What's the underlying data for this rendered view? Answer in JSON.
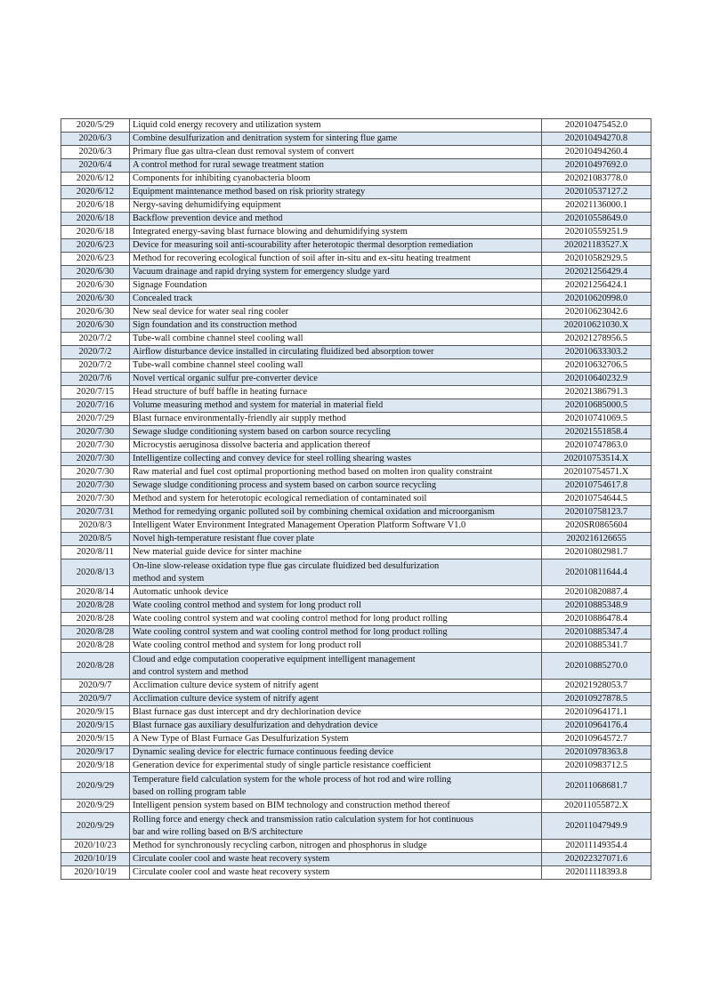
{
  "colors": {
    "row_alt": "#dce6f0",
    "border": "#555555"
  },
  "rows": [
    {
      "date": "2020/5/29",
      "title": "Liquid cold energy recovery and utilization system",
      "number": "202010475452.0"
    },
    {
      "date": "2020/6/3",
      "title": "Combine desulfurization and denitration system for sintering flue game",
      "number": "202010494270.8"
    },
    {
      "date": "2020/6/3",
      "title": "Primary flue gas ultra-clean dust removal system of convert",
      "number": "202010494260.4"
    },
    {
      "date": "2020/6/4",
      "title": "A control method for rural sewage treatment station",
      "number": "202010497692.0"
    },
    {
      "date": "2020/6/12",
      "title": "Components for inhibiting cyanobacteria bloom",
      "number": "202021083778.0"
    },
    {
      "date": "2020/6/12",
      "title": "Equipment maintenance method based on risk priority strategy",
      "number": "202010537127.2"
    },
    {
      "date": "2020/6/18",
      "title": "Nergy-saving dehumidifying equipment",
      "number": "202021136000.1"
    },
    {
      "date": "2020/6/18",
      "title": "Backflow prevention device and method",
      "number": "202010558649.0"
    },
    {
      "date": "2020/6/18",
      "title": "Integrated energy-saving blast furnace blowing and dehumidifying system",
      "number": "202010559251.9"
    },
    {
      "date": "2020/6/23",
      "title": "Device for measuring soil anti-scourability after heterotopic thermal desorption remediation",
      "number": "202021183527.X"
    },
    {
      "date": "2020/6/23",
      "title": "Method for recovering ecological function of soil after in-situ and ex-situ heating treatment",
      "number": "202010582929.5"
    },
    {
      "date": "2020/6/30",
      "title": "Vacuum drainage and rapid drying system for emergency sludge yard",
      "number": "202021256429.4"
    },
    {
      "date": "2020/6/30",
      "title": "Signage Foundation",
      "number": "202021256424.1"
    },
    {
      "date": "2020/6/30",
      "title": "Concealed track",
      "number": "202010620998.0"
    },
    {
      "date": "2020/6/30",
      "title": "New seal device for water seal ring cooler",
      "number": "202010623042.6"
    },
    {
      "date": "2020/6/30",
      "title": "Sign foundation and its construction method",
      "number": "202010621030.X"
    },
    {
      "date": "2020/7/2",
      "title": "Tube-wall combine channel steel cooling wall",
      "number": "202021278956.5"
    },
    {
      "date": "2020/7/2",
      "title": "Airflow disturbance device installed in circulating fluidized bed absorption tower",
      "number": "202010633303.2"
    },
    {
      "date": "2020/7/2",
      "title": "Tube-wall combine channel steel cooling wall",
      "number": "202010632706.5"
    },
    {
      "date": "2020/7/6",
      "title": "Novel vertical organic sulfur pre-converter device",
      "number": "202010640232.9"
    },
    {
      "date": "2020/7/15",
      "title": "Head structure of buff baffle in heating furnace",
      "number": "202021386791.3"
    },
    {
      "date": "2020/7/16",
      "title": "Volume measuring method and system for material in material field",
      "number": "202010685000.5"
    },
    {
      "date": "2020/7/29",
      "title": "Blast furnace environmentally-friendly air supply method",
      "number": "202010741069.5"
    },
    {
      "date": "2020/7/30",
      "title": "Sewage sludge conditioning system based on carbon source recycling",
      "number": "202021551858.4"
    },
    {
      "date": "2020/7/30",
      "title": "Microcystis aeruginosa dissolve bacteria and application thereof",
      "number": "202010747863.0"
    },
    {
      "date": "2020/7/30",
      "title": "Intelligentize collecting and convey device for steel rolling shearing wastes",
      "number": "202010753514.X"
    },
    {
      "date": "2020/7/30",
      "title": "Raw material and fuel cost optimal proportioning method based on molten iron quality constraint",
      "number": "202010754571.X"
    },
    {
      "date": "2020/7/30",
      "title": "Sewage sludge conditioning process and system based on carbon source recycling",
      "number": "202010754617.8"
    },
    {
      "date": "2020/7/30",
      "title": "Method and system for heterotopic ecological remediation of contaminated soil",
      "number": "202010754644.5"
    },
    {
      "date": "2020/7/31",
      "title": "Method for remedying organic polluted soil by combining chemical oxidation and microorganism",
      "number": "202010758123.7"
    },
    {
      "date": "2020/8/3",
      "title": "Intelligent Water Environment Integrated Management Operation Platform Software V1.0",
      "number": "2020SR0865604"
    },
    {
      "date": "2020/8/5",
      "title": "Novel high-temperature resistant flue cover plate",
      "number": "2020216126655"
    },
    {
      "date": "2020/8/11",
      "title": "New material guide device for sinter machine",
      "number": "202010802981.7"
    },
    {
      "date": "2020/8/13",
      "title": "On-line slow-release oxidation type flue gas circulate fluidized bed desulfurization\nmethod and system",
      "number": "202010811644.4"
    },
    {
      "date": "2020/8/14",
      "title": "Automatic unhook device",
      "number": "202010820887.4"
    },
    {
      "date": "2020/8/28",
      "title": "Wate cooling control method and system for long product roll",
      "number": "202010885348.9"
    },
    {
      "date": "2020/8/28",
      "title": "Wate cooling control system and wat cooling control method for long product rolling",
      "number": "202010886478.4"
    },
    {
      "date": "2020/8/28",
      "title": "Wate cooling control system and wat cooling control method for long product rolling",
      "number": "202010885347.4"
    },
    {
      "date": "2020/8/28",
      "title": "Wate cooling control method and system for long product roll",
      "number": "202010885341.7"
    },
    {
      "date": "2020/8/28",
      "title": "Cloud and edge computation cooperative equipment intelligent management\nand control system and method",
      "number": "202010885270.0"
    },
    {
      "date": "2020/9/7",
      "title": "Acclimation culture device system of nitrify agent",
      "number": "202021928053.7"
    },
    {
      "date": "2020/9/7",
      "title": "Acclimation culture device system of nitrify agent",
      "number": "202010927878.5"
    },
    {
      "date": "2020/9/15",
      "title": "Blast furnace gas dust intercept and dry dechlorination device",
      "number": "202010964171.1"
    },
    {
      "date": "2020/9/15",
      "title": "Blast furnace gas auxiliary desulfurization and dehydration device",
      "number": "202010964176.4"
    },
    {
      "date": "2020/9/15",
      "title": "A New Type of Blast Furnace Gas Desulfurization System",
      "number": "202010964572.7"
    },
    {
      "date": "2020/9/17",
      "title": "Dynamic sealing device for electric furnace continuous feeding device",
      "number": "202010978363.8"
    },
    {
      "date": "2020/9/18",
      "title": "Generation device for experimental study of single particle resistance coefficient",
      "number": "202010983712.5"
    },
    {
      "date": "2020/9/29",
      "title": "Temperature field calculation system for the whole process of hot rod and wire rolling\nbased on rolling program table",
      "number": "202011068681.7"
    },
    {
      "date": "2020/9/29",
      "title": "Intelligent pension system based on BIM technology and construction method thereof",
      "number": "202011055872.X"
    },
    {
      "date": "2020/9/29",
      "title": "Rolling force and energy check and transmission ratio calculation system for hot continuous\nbar and wire rolling based on B/S architecture",
      "number": "202011047949.9"
    },
    {
      "date": "2020/10/23",
      "title": "Method for synchronously recycling carbon, nitrogen and phosphorus in sludge",
      "number": "202011149354.4"
    },
    {
      "date": "2020/10/19",
      "title": "Circulate cooler cool and waste heat recovery system",
      "number": "202022327071.6"
    },
    {
      "date": "2020/10/19",
      "title": "Circulate cooler cool and waste heat recovery system",
      "number": "202011118393.8"
    }
  ]
}
